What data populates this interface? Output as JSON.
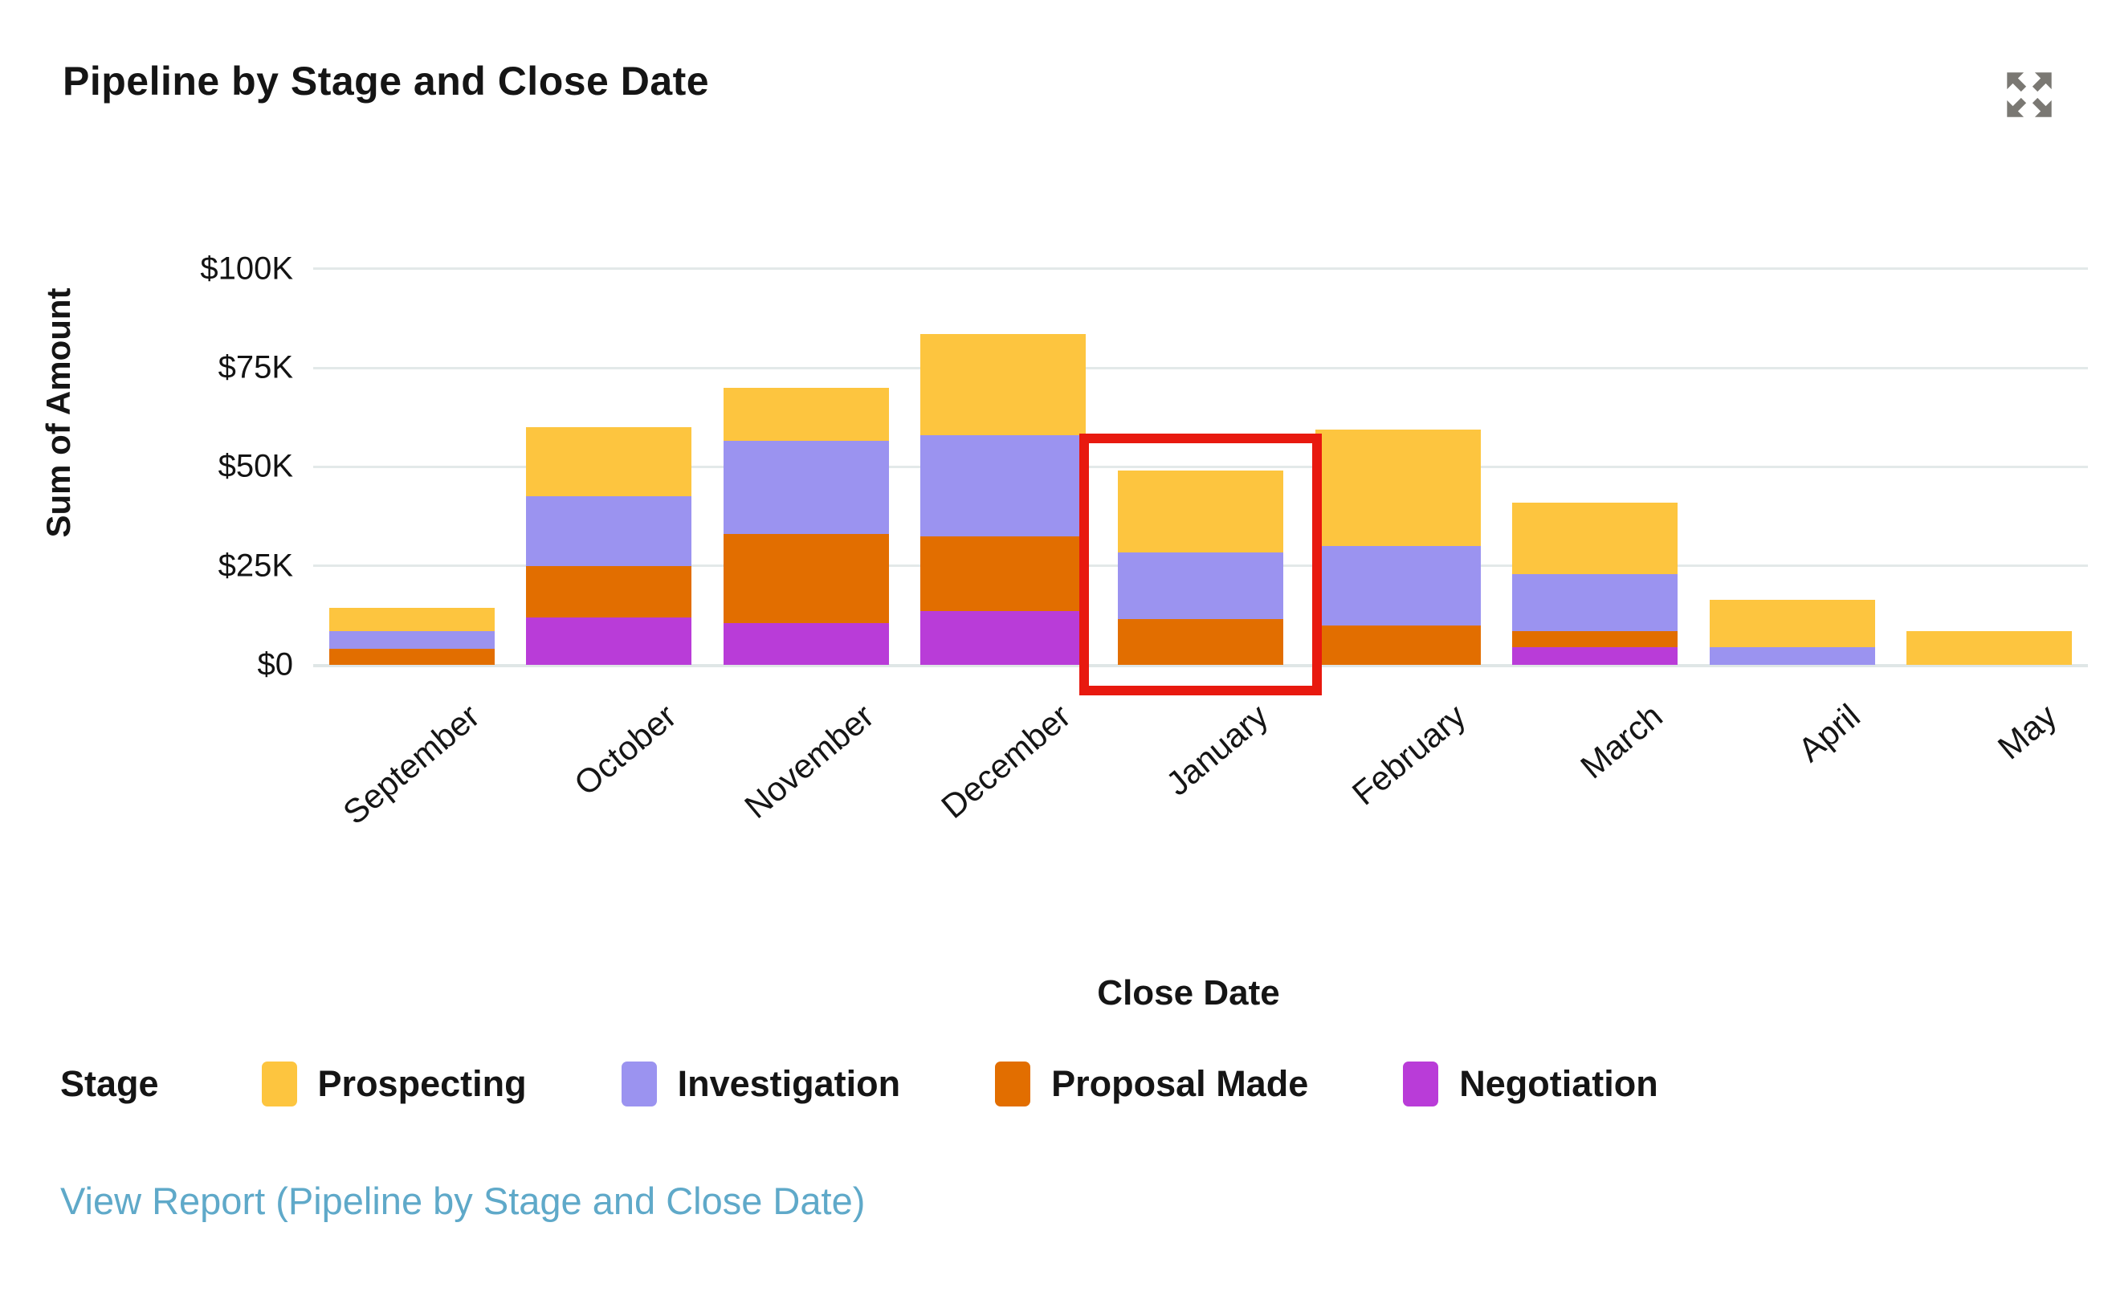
{
  "header": {
    "title": "Pipeline by Stage and Close Date"
  },
  "icons": {
    "expand_icon_color": "#7a7873"
  },
  "chart_data": {
    "type": "bar",
    "stacked": true,
    "title": "Pipeline by Stage and Close Date",
    "xlabel": "Close Date",
    "ylabel": "Sum of Amount",
    "values_unit": "USD thousands",
    "ylim": [
      0,
      100
    ],
    "y_ticks": [
      {
        "label": "$100K",
        "value": 100
      },
      {
        "label": "$75K",
        "value": 75
      },
      {
        "label": "$50K",
        "value": 50
      },
      {
        "label": "$25K",
        "value": 25
      },
      {
        "label": "$0",
        "value": 0
      }
    ],
    "grid": true,
    "legend_position": "bottom",
    "categories": [
      "September",
      "October",
      "November",
      "December",
      "January",
      "February",
      "March",
      "April",
      "May"
    ],
    "series": [
      {
        "name": "Prospecting",
        "color": "#fdc53f",
        "values": [
          6,
          17.5,
          13.5,
          25.5,
          20.5,
          29.5,
          18,
          12,
          8.5
        ]
      },
      {
        "name": "Investigation",
        "color": "#9b93f0",
        "values": [
          4.5,
          17.5,
          23.5,
          25.5,
          17,
          20,
          14.5,
          4.5,
          0
        ]
      },
      {
        "name": "Proposal Made",
        "color": "#e26e00",
        "values": [
          4,
          13,
          22.5,
          19,
          11.5,
          10,
          4,
          0,
          0
        ]
      },
      {
        "name": "Negotiation",
        "color": "#b93cd8",
        "values": [
          0,
          12,
          10.5,
          13.5,
          0,
          0,
          4.5,
          0,
          0
        ]
      }
    ],
    "stack_order_bottom_to_top": [
      "Negotiation",
      "Proposal Made",
      "Investigation",
      "Prospecting"
    ],
    "totals": [
      14.5,
      60,
      70,
      83.5,
      49,
      59.5,
      41,
      16.5,
      8.5
    ],
    "highlight": {
      "category": "January",
      "box_color": "#e8190f"
    }
  },
  "legend": {
    "title": "Stage",
    "items": [
      {
        "label": "Prospecting",
        "color": "#fdc53f"
      },
      {
        "label": "Investigation",
        "color": "#9b93f0"
      },
      {
        "label": "Proposal Made",
        "color": "#e26e00"
      },
      {
        "label": "Negotiation",
        "color": "#b93cd8"
      }
    ]
  },
  "footer": {
    "view_report_label": "View Report (Pipeline by Stage and Close Date)"
  }
}
